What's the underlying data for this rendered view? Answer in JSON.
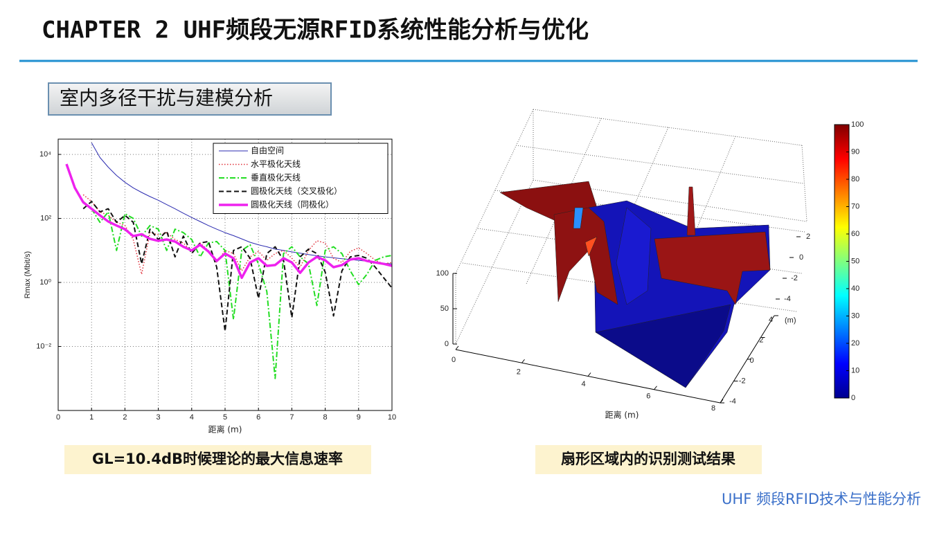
{
  "header": {
    "title": "CHAPTER 2 UHF频段无源RFID系统性能分析与优化"
  },
  "section": {
    "label": "室内多径干扰与建模分析"
  },
  "footer": {
    "text": "UHF 频段RFID技术与性能分析"
  },
  "chart_data": [
    {
      "type": "line",
      "title": "GL=10.4dB时候理论的最大信息速率",
      "xlabel": "距离 (m)",
      "ylabel": "Rmax (Mbit/s)",
      "log_y": true,
      "grid": true,
      "legend": "top-right",
      "xlim": [
        0,
        10
      ],
      "xticks": [
        0,
        1,
        2,
        3,
        4,
        5,
        6,
        7,
        8,
        9,
        10
      ],
      "ylim": [
        0.0001,
        30000
      ],
      "yticks": [
        {
          "value": 0.01,
          "label": "10⁻²"
        },
        {
          "value": 1,
          "label": "10⁰"
        },
        {
          "value": 100,
          "label": "10²"
        },
        {
          "value": 10000,
          "label": "10⁴"
        }
      ],
      "x": [
        0.25,
        0.5,
        0.75,
        1,
        1.25,
        1.5,
        1.75,
        2,
        2.25,
        2.5,
        2.75,
        3,
        3.25,
        3.5,
        3.75,
        4,
        4.25,
        4.5,
        4.75,
        5,
        5.25,
        5.5,
        5.75,
        6,
        6.25,
        6.5,
        6.75,
        7,
        7.25,
        7.5,
        7.75,
        8,
        8.25,
        8.5,
        8.75,
        9,
        9.25,
        9.5,
        9.75,
        10
      ],
      "series": [
        {
          "name": "自由空间",
          "color": "#2b2bb0",
          "style": "solid",
          "width": 1,
          "values": [
            null,
            null,
            null,
            23000,
            8000,
            4000,
            2200,
            1350,
            900,
            650,
            480,
            370,
            270,
            200,
            145,
            107,
            80,
            60,
            46,
            36,
            29,
            23,
            18,
            15,
            13,
            11,
            10,
            9,
            8.2,
            7.4,
            6.8,
            6.3,
            5.9,
            5.5,
            5.2,
            4.9,
            4.6,
            4.3,
            4.0,
            3.8
          ]
        },
        {
          "name": "水平极化天线",
          "color": "#e0303a",
          "style": "dotted",
          "width": 1.5,
          "values": [
            null,
            null,
            550,
            340,
            160,
            125,
            76,
            60,
            22,
            1.8,
            36,
            31,
            36,
            22,
            17,
            9.3,
            17,
            10,
            4.2,
            10,
            8,
            2.3,
            6.3,
            9.3,
            4.9,
            8,
            10,
            5.7,
            3,
            10,
            20,
            17,
            5.7,
            4.2,
            9.3,
            12,
            8,
            4.9,
            3.8,
            4.2
          ]
        },
        {
          "name": "垂直极化天线",
          "color": "#22dd22",
          "style": "dashdot",
          "width": 2,
          "values": [
            null,
            null,
            340,
            200,
            76,
            160,
            10,
            140,
            100,
            28,
            60,
            46,
            10,
            46,
            36,
            22,
            6.3,
            17,
            19,
            10,
            0.07,
            10,
            15,
            3.8,
            0.52,
            0.001,
            8,
            13,
            6.3,
            3.8,
            0.19,
            10,
            13,
            8,
            2.3,
            0.86,
            1.8,
            4.9,
            6.3,
            7
          ]
        },
        {
          "name": "圆极化天线（交叉极化）",
          "color": "#111111",
          "style": "dashed",
          "width": 2,
          "values": [
            null,
            null,
            200,
            340,
            160,
            200,
            76,
            125,
            76,
            3.8,
            46,
            22,
            40,
            6.3,
            28,
            8,
            17,
            19,
            3,
            0.03,
            10,
            13,
            5.7,
            0.32,
            8,
            13,
            4.9,
            0.08,
            6.3,
            11,
            8,
            2.1,
            0.09,
            2.3,
            6.3,
            7,
            5.7,
            3,
            1.4,
            0.67
          ]
        },
        {
          "name": "圆极化天线（同极化）",
          "color": "#ee22ee",
          "style": "solid",
          "width": 3.5,
          "values": [
            5000,
            900,
            320,
            200,
            125,
            80,
            60,
            46,
            28,
            32,
            23,
            20,
            22,
            19,
            13,
            10,
            15,
            9.3,
            4.7,
            8,
            5.7,
            1.4,
            4.2,
            5.7,
            3.3,
            3.5,
            5.7,
            4.2,
            2,
            4.2,
            6.3,
            4.9,
            3,
            3.5,
            5.2,
            5.7,
            4.7,
            4.2,
            3.8,
            3.3
          ]
        }
      ]
    },
    {
      "type": "surface3d",
      "title": "扇形区域内的识别测试结果",
      "xlabel": "距离 (m)",
      "ylabel": "(m)",
      "xlim": [
        0,
        8
      ],
      "xticks": [
        0,
        2,
        4,
        6,
        8
      ],
      "ylim": [
        -4,
        4
      ],
      "yticks": [
        -4,
        -2,
        0,
        2,
        4
      ],
      "yticks_back": [
        -4,
        -2,
        0,
        2
      ],
      "zlim": [
        0,
        100
      ],
      "zticks": [
        0,
        50,
        100
      ],
      "colormap": "jet",
      "clim": [
        0,
        100
      ],
      "cticks": [
        0,
        10,
        20,
        30,
        40,
        50,
        60,
        70,
        80,
        90,
        100
      ]
    }
  ]
}
